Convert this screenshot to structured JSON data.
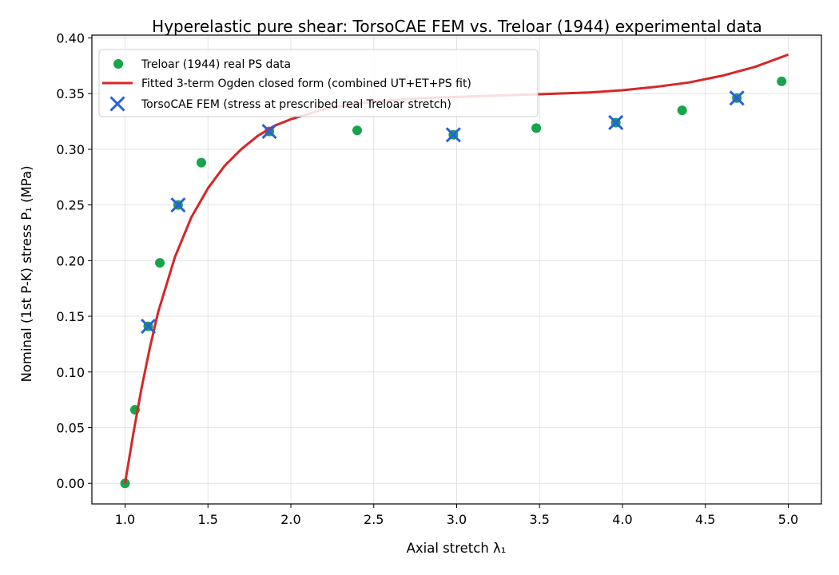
{
  "chart_data": {
    "type": "scatter",
    "title": "Hyperelastic pure shear: TorsoCAE FEM vs. Treloar (1944) experimental data",
    "xlabel": "Axial stretch λ₁",
    "ylabel": "Nominal (1st P-K) stress P₁ (MPa)",
    "xlim": [
      0.8,
      5.2
    ],
    "ylim": [
      -0.0185,
      0.4025
    ],
    "x_ticks": [
      "1.0",
      "1.5",
      "2.0",
      "2.5",
      "3.0",
      "3.5",
      "4.0",
      "4.5",
      "5.0"
    ],
    "y_ticks": [
      "0.00",
      "0.05",
      "0.10",
      "0.15",
      "0.20",
      "0.25",
      "0.30",
      "0.35",
      "0.40"
    ],
    "grid": true,
    "legend_position": "top-left",
    "series": [
      {
        "name": "Treloar (1944) real PS data",
        "kind": "scatter",
        "marker": "circle",
        "color": "#17a44a",
        "points": [
          [
            1.0,
            0.0
          ],
          [
            1.06,
            0.066
          ],
          [
            1.14,
            0.141
          ],
          [
            1.21,
            0.198
          ],
          [
            1.32,
            0.25
          ],
          [
            1.46,
            0.288
          ],
          [
            1.87,
            0.316
          ],
          [
            2.4,
            0.317
          ],
          [
            2.98,
            0.313
          ],
          [
            3.48,
            0.319
          ],
          [
            3.96,
            0.324
          ],
          [
            4.36,
            0.335
          ],
          [
            4.69,
            0.346
          ],
          [
            4.96,
            0.361
          ]
        ]
      },
      {
        "name": "Fitted 3-term Ogden closed form (combined UT+ET+PS fit)",
        "kind": "line",
        "color": "#d62728",
        "points": [
          [
            1.0,
            0.0
          ],
          [
            1.05,
            0.045
          ],
          [
            1.1,
            0.086
          ],
          [
            1.15,
            0.122
          ],
          [
            1.2,
            0.154
          ],
          [
            1.3,
            0.203
          ],
          [
            1.4,
            0.239
          ],
          [
            1.5,
            0.265
          ],
          [
            1.6,
            0.285
          ],
          [
            1.7,
            0.3
          ],
          [
            1.8,
            0.312
          ],
          [
            1.9,
            0.321
          ],
          [
            2.0,
            0.327
          ],
          [
            2.2,
            0.336
          ],
          [
            2.4,
            0.341
          ],
          [
            2.6,
            0.344
          ],
          [
            2.8,
            0.346
          ],
          [
            3.0,
            0.347
          ],
          [
            3.2,
            0.348
          ],
          [
            3.4,
            0.349
          ],
          [
            3.6,
            0.35
          ],
          [
            3.8,
            0.351
          ],
          [
            4.0,
            0.353
          ],
          [
            4.2,
            0.356
          ],
          [
            4.4,
            0.36
          ],
          [
            4.6,
            0.366
          ],
          [
            4.8,
            0.374
          ],
          [
            5.0,
            0.385
          ]
        ]
      },
      {
        "name": "TorsoCAE FEM (stress at prescribed real Treloar stretch)",
        "kind": "scatter",
        "marker": "x",
        "color": "#2a5fe0",
        "points": [
          [
            1.14,
            0.141
          ],
          [
            1.32,
            0.25
          ],
          [
            1.87,
            0.316
          ],
          [
            2.98,
            0.313
          ],
          [
            3.96,
            0.324
          ],
          [
            4.69,
            0.346
          ]
        ]
      }
    ]
  }
}
